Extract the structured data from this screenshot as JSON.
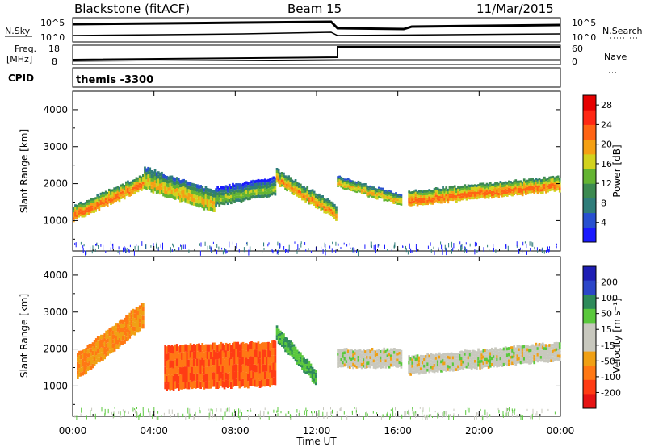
{
  "header": {
    "station": "Blackstone (fitACF)",
    "beam": "Beam 15",
    "date": "11/Mar/2015"
  },
  "top_panels": {
    "nsky": {
      "label": "N.Sky",
      "tick_top": "10^5",
      "tick_bottom": "10^0"
    },
    "nsearch": {
      "label": "N.Search",
      "tick_top": "10^5",
      "tick_bottom": "10^0"
    },
    "freq": {
      "label_line1": "Freq.",
      "label_line2": "[MHz]",
      "tick_top": "18",
      "tick_bottom": "8"
    },
    "nave": {
      "label": "Nave",
      "tick_top": "60",
      "tick_bottom": "0"
    },
    "cpid": {
      "label": "CPID",
      "value": "themis -3300"
    }
  },
  "colors": {
    "power_scale": [
      "#1a1aff",
      "#2850d0",
      "#2f7d7a",
      "#3c8a50",
      "#64b432",
      "#d2d21e",
      "#f5a014",
      "#ff6414",
      "#ff2814",
      "#e60000"
    ],
    "velocity_scale": [
      "#1e1eb4",
      "#2c46c8",
      "#2e8a5a",
      "#5ac83c",
      "#c8c8be",
      "#c8c8be",
      "#f0a014",
      "#ff7814",
      "#ff3c14",
      "#e61414"
    ]
  },
  "chart_data": [
    {
      "type": "heatmap",
      "title": "",
      "xlabel": "Time UT",
      "ylabel": "Slant Range [km]",
      "x_ticks": [
        "00:00",
        "04:00",
        "08:00",
        "12:00",
        "16:00",
        "20:00",
        "00:00"
      ],
      "xlim_hours": [
        0,
        24
      ],
      "y_ticks": [
        1000,
        2000,
        3000,
        4000
      ],
      "ylim": [
        180,
        4500
      ],
      "colorbar": {
        "label": "Power [dB]",
        "ticks": [
          4,
          8,
          12,
          16,
          20,
          24,
          28
        ],
        "range": [
          0,
          30
        ]
      },
      "bands": [
        {
          "hours": [
            0.0,
            3.5
          ],
          "range_start": [
            1000,
            1850
          ],
          "width": 400,
          "value": 24
        },
        {
          "hours": [
            3.5,
            7.0
          ],
          "range_start": [
            1850,
            1200
          ],
          "width": 600,
          "value": 20
        },
        {
          "hours": [
            7.0,
            10.0
          ],
          "range_start": [
            1400,
            1700
          ],
          "width": 500,
          "value": 16
        },
        {
          "hours": [
            10.0,
            13.0
          ],
          "range_start": [
            2000,
            1000
          ],
          "width": 400,
          "value": 22
        },
        {
          "hours": [
            13.0,
            16.2
          ],
          "range_start": [
            1900,
            1400
          ],
          "width": 300,
          "value": 20
        },
        {
          "hours": [
            16.5,
            24.0
          ],
          "range_start": [
            1400,
            1800
          ],
          "width": 400,
          "value": 24
        }
      ]
    },
    {
      "type": "heatmap",
      "title": "",
      "xlabel": "Time UT",
      "ylabel": "Slant Range [km]",
      "x_ticks": [
        "00:00",
        "04:00",
        "08:00",
        "12:00",
        "16:00",
        "20:00",
        "00:00"
      ],
      "xlim_hours": [
        0,
        24
      ],
      "y_ticks": [
        1000,
        2000,
        3000,
        4000
      ],
      "ylim": [
        180,
        4500
      ],
      "colorbar": {
        "label": "Velocity [m s⁻¹]",
        "ticks": [
          200,
          100,
          50,
          15,
          -15,
          -50,
          -100,
          -200
        ]
      },
      "bands": [
        {
          "hours": [
            0.2,
            3.5
          ],
          "range_start": [
            1200,
            2600
          ],
          "width": 700,
          "value": -50
        },
        {
          "hours": [
            4.5,
            10.0
          ],
          "range_start": [
            900,
            1000
          ],
          "width": 1200,
          "value": -100
        },
        {
          "hours": [
            10.0,
            12.0
          ],
          "range_start": [
            2200,
            1000
          ],
          "width": 400,
          "value": 50
        },
        {
          "hours": [
            13.0,
            16.2
          ],
          "range_start": [
            1500,
            1500
          ],
          "width": 500,
          "value": 0
        },
        {
          "hours": [
            16.5,
            24.0
          ],
          "range_start": [
            1300,
            1700
          ],
          "width": 500,
          "value": 0
        }
      ]
    }
  ]
}
